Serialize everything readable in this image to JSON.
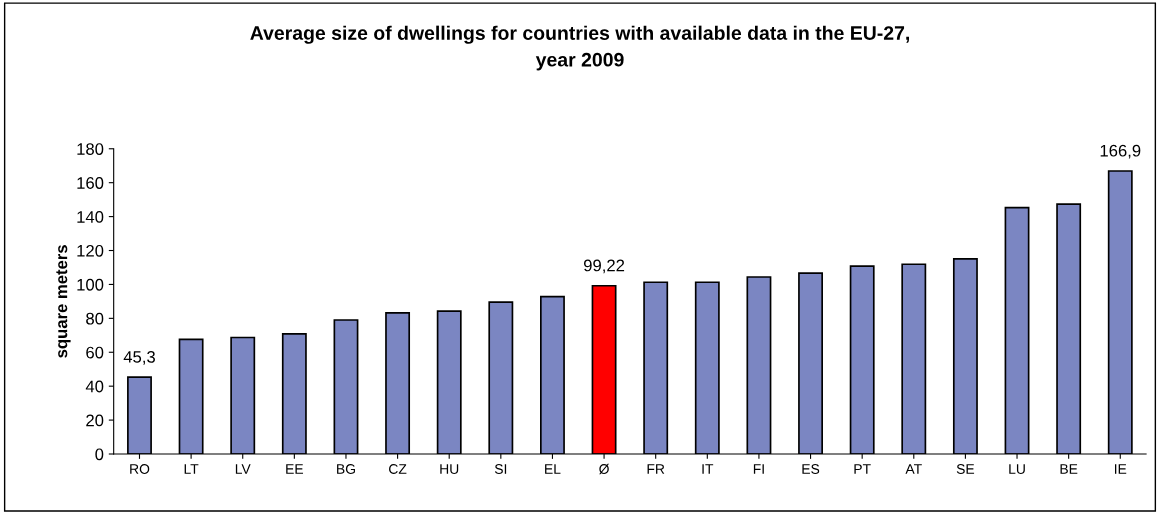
{
  "chart_data": {
    "type": "bar",
    "title": "Average size of dwellings for countries with available data in the EU-27,\nyear 2009",
    "ylabel": "square meters",
    "categories": [
      "RO",
      "LT",
      "LV",
      "EE",
      "BG",
      "CZ",
      "HU",
      "SI",
      "EL",
      "Ø",
      "FR",
      "IT",
      "FI",
      "ES",
      "PT",
      "AT",
      "SE",
      "LU",
      "BE",
      "IE"
    ],
    "values": [
      45.3,
      67.6,
      68.7,
      70.8,
      79.0,
      83.2,
      84.3,
      89.6,
      92.8,
      99.22,
      101.3,
      101.3,
      104.4,
      106.7,
      110.8,
      111.9,
      115.1,
      145.3,
      147.4,
      166.9
    ],
    "colors": [
      "#7b86c2",
      "#7b86c2",
      "#7b86c2",
      "#7b86c2",
      "#7b86c2",
      "#7b86c2",
      "#7b86c2",
      "#7b86c2",
      "#7b86c2",
      "#ff0000",
      "#7b86c2",
      "#7b86c2",
      "#7b86c2",
      "#7b86c2",
      "#7b86c2",
      "#7b86c2",
      "#7b86c2",
      "#7b86c2",
      "#7b86c2",
      "#7b86c2"
    ],
    "value_labels": [
      "45,3",
      null,
      null,
      null,
      null,
      null,
      null,
      null,
      null,
      "99,22",
      null,
      null,
      null,
      null,
      null,
      null,
      null,
      null,
      null,
      "166,9"
    ],
    "ylim": [
      0,
      180
    ],
    "yticks": [
      0,
      20,
      40,
      60,
      80,
      100,
      120,
      140,
      160,
      180
    ],
    "grid": false,
    "legend": false
  }
}
